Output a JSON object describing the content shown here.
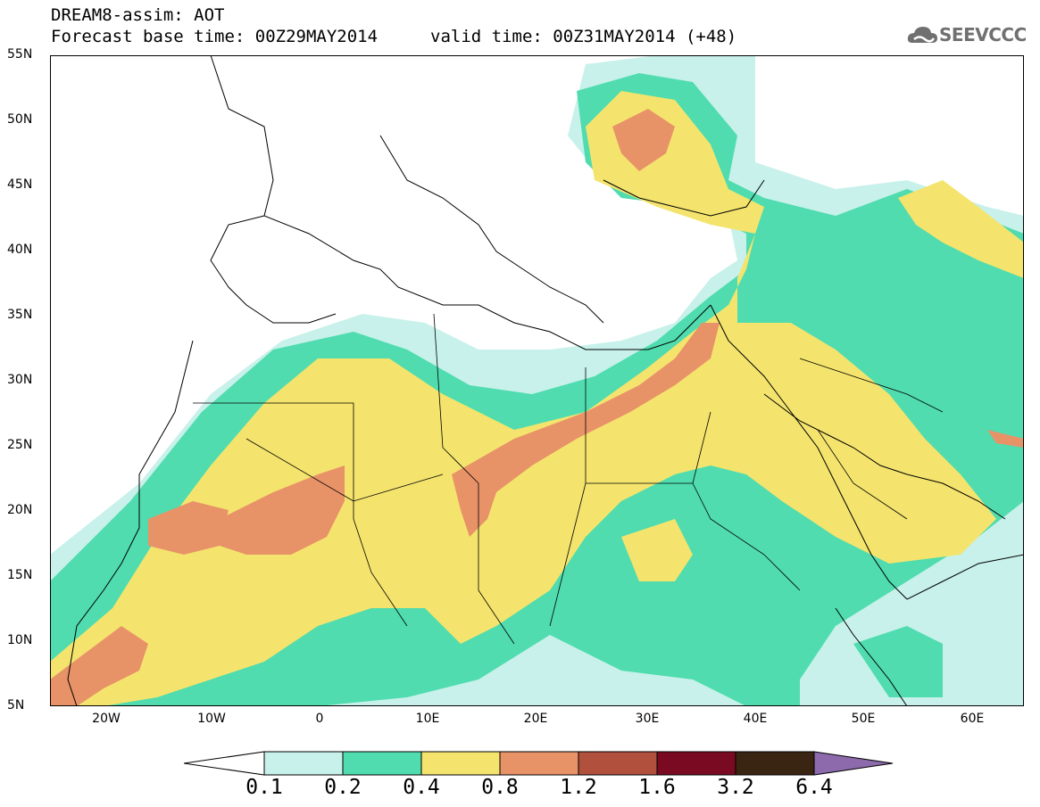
{
  "header": {
    "title": "DREAM8-assim: AOT",
    "base_time": "Forecast base time: 00Z29MAY2014",
    "valid_time": "valid time: 00Z31MAY2014 (+48)"
  },
  "logo": {
    "text": "SEEVCCC",
    "icon": "cloud-logo-icon"
  },
  "map": {
    "type": "aerosol-optical-thickness-map",
    "lat_range": [
      5,
      55
    ],
    "lon_range": [
      -25,
      65
    ],
    "lat_labels": [
      "55N",
      "50N",
      "45N",
      "40N",
      "35N",
      "30N",
      "25N",
      "20N",
      "15N",
      "10N",
      "5N"
    ],
    "lon_labels": [
      "20W",
      "10W",
      "0",
      "10E",
      "20E",
      "30E",
      "40E",
      "50E",
      "60E"
    ]
  },
  "colorbar": {
    "labels": [
      "0.1",
      "0.2",
      "0.4",
      "0.8",
      "1.2",
      "1.6",
      "3.2",
      "6.4"
    ],
    "colors": [
      "#ffffff",
      "#c7f1ea",
      "#50dcae",
      "#f4e46e",
      "#e89268",
      "#b2503e",
      "#7a0a22",
      "#3a2412",
      "#8c6aac"
    ]
  }
}
